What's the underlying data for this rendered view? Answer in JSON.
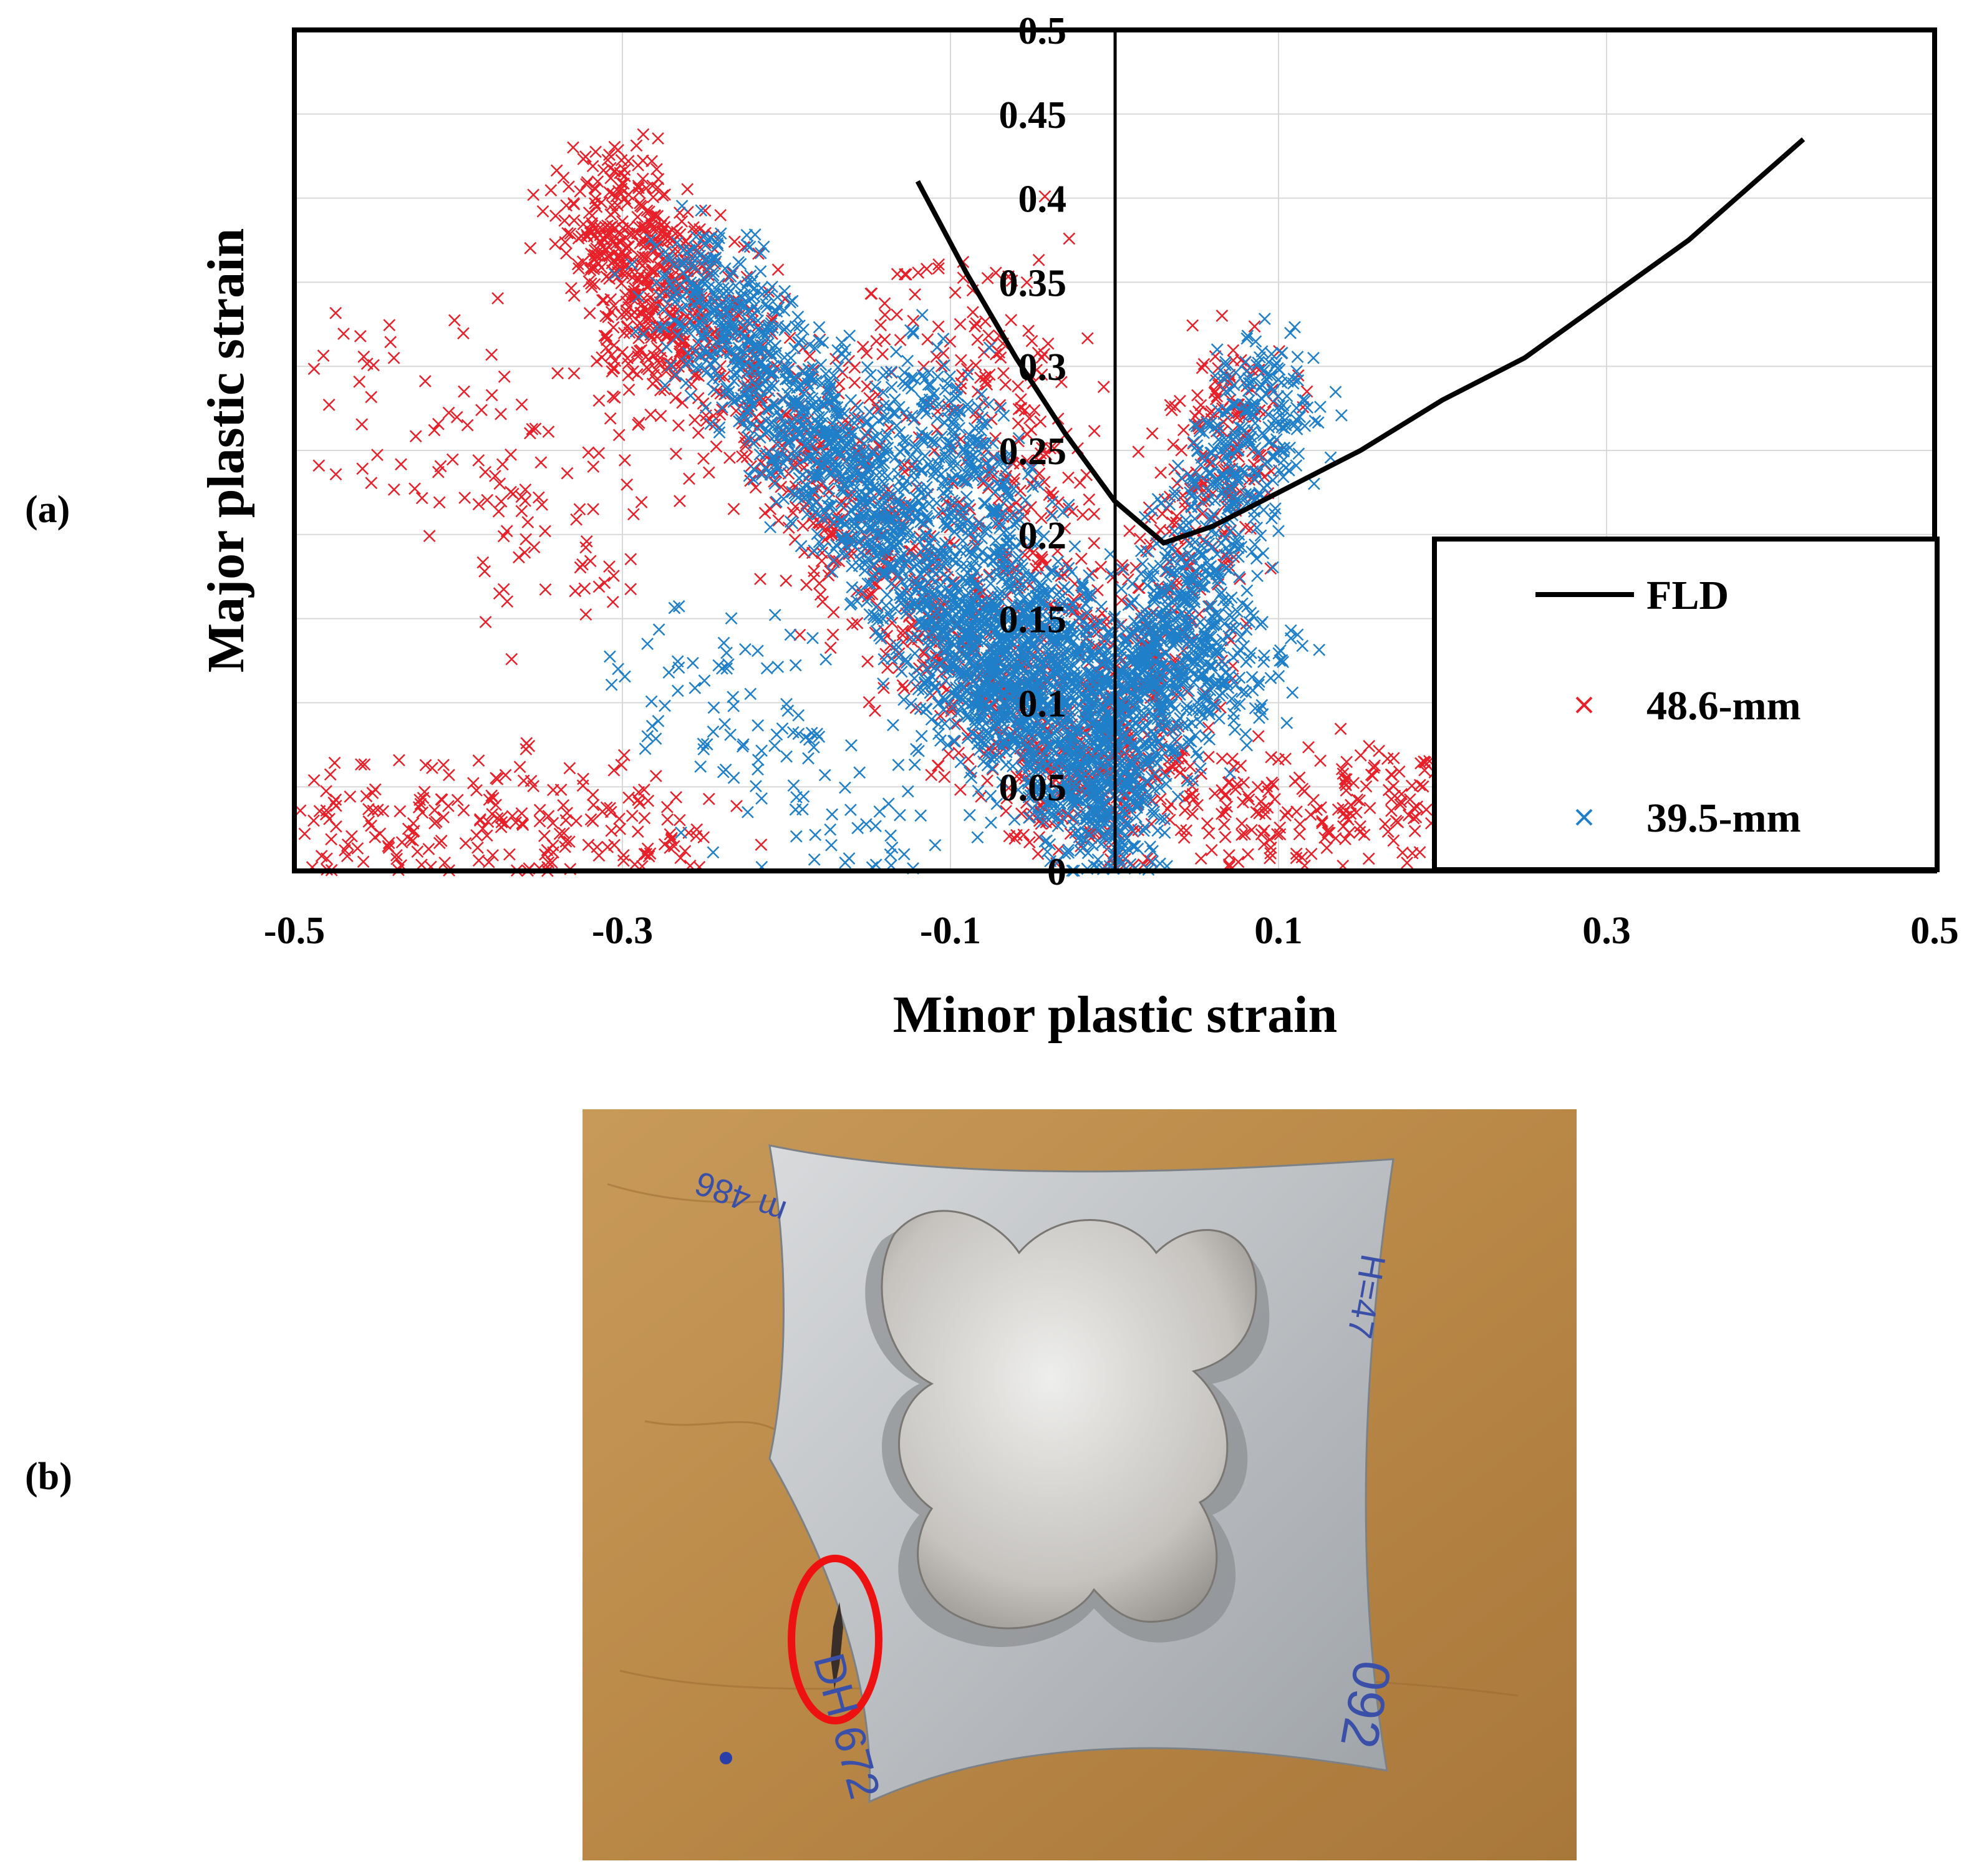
{
  "panels": {
    "a": "(a)",
    "b": "(b)"
  },
  "colors": {
    "fld": "#000000",
    "s48": "#e8202a",
    "s39": "#1f7fc8",
    "grid": "#d9d9d9",
    "ellipse": "#ee1111"
  },
  "chart_data": {
    "type": "scatter",
    "xlabel": "Minor plastic strain",
    "ylabel": "Major plastic strain",
    "xlim": [
      -0.5,
      0.5
    ],
    "ylim": [
      0,
      0.5
    ],
    "xticks": [
      "-0.5",
      "-0.3",
      "-0.1",
      "0.1",
      "0.3",
      "0.5"
    ],
    "yticks": [
      "0",
      "0.05",
      "0.1",
      "0.15",
      "0.2",
      "0.25",
      "0.3",
      "0.35",
      "0.4",
      "0.45",
      "0.5"
    ],
    "grid": true,
    "legend_position": "bottom-right",
    "fld": {
      "name": "FLD",
      "x": [
        -0.12,
        -0.09,
        -0.06,
        -0.03,
        0.0,
        0.03,
        0.06,
        0.09,
        0.15,
        0.2,
        0.25,
        0.3,
        0.35,
        0.42
      ],
      "y": [
        0.41,
        0.355,
        0.305,
        0.26,
        0.22,
        0.195,
        0.205,
        0.22,
        0.25,
        0.28,
        0.305,
        0.34,
        0.375,
        0.435
      ]
    },
    "series": [
      {
        "name": "48.6-mm",
        "marker": "x"
      },
      {
        "name": "39.5-mm",
        "marker": "x"
      }
    ],
    "clusters": [
      {
        "series": "48.6-mm",
        "x": [
          -0.3,
          0.0
        ],
        "y": [
          0.38,
          0.02
        ],
        "n": 900,
        "spread": 0.025
      },
      {
        "series": "48.6-mm",
        "x": [
          -0.31,
          -0.27
        ],
        "y": [
          0.41,
          0.3
        ],
        "n": 350,
        "spread": 0.02
      },
      {
        "series": "48.6-mm",
        "x": [
          -0.1,
          0.0
        ],
        "y": [
          0.34,
          0.05
        ],
        "n": 400,
        "spread": 0.03
      },
      {
        "series": "48.6-mm",
        "x": [
          0.0,
          0.08
        ],
        "y": [
          0.05,
          0.3
        ],
        "n": 350,
        "spread": 0.02
      },
      {
        "series": "48.6-mm",
        "x": [
          -0.5,
          -0.25
        ],
        "y": [
          0.03,
          0.03
        ],
        "n": 220,
        "spread": 0.02
      },
      {
        "series": "48.6-mm",
        "x": [
          0.05,
          0.22
        ],
        "y": [
          0.04,
          0.04
        ],
        "n": 200,
        "spread": 0.02
      },
      {
        "series": "48.6-mm",
        "x": [
          -0.45,
          -0.3
        ],
        "y": [
          0.3,
          0.18
        ],
        "n": 120,
        "spread": 0.035
      },
      {
        "series": "39.5-mm",
        "x": [
          -0.26,
          0.0
        ],
        "y": [
          0.36,
          0.02
        ],
        "n": 1700,
        "spread": 0.02
      },
      {
        "series": "39.5-mm",
        "x": [
          -0.12,
          0.0
        ],
        "y": [
          0.29,
          0.05
        ],
        "n": 700,
        "spread": 0.02
      },
      {
        "series": "39.5-mm",
        "x": [
          0.0,
          0.1
        ],
        "y": [
          0.05,
          0.3
        ],
        "n": 700,
        "spread": 0.018
      },
      {
        "series": "39.5-mm",
        "x": [
          -0.1,
          0.08
        ],
        "y": [
          0.12,
          0.12
        ],
        "n": 700,
        "spread": 0.025
      },
      {
        "series": "39.5-mm",
        "x": [
          -0.28,
          -0.12
        ],
        "y": [
          0.12,
          0.02
        ],
        "n": 120,
        "spread": 0.03
      }
    ]
  },
  "photo": {
    "label_top_left": "m 486",
    "label_top_right": "H=47",
    "label_bottom_left": "DH 672",
    "label_bottom_right": "092"
  }
}
